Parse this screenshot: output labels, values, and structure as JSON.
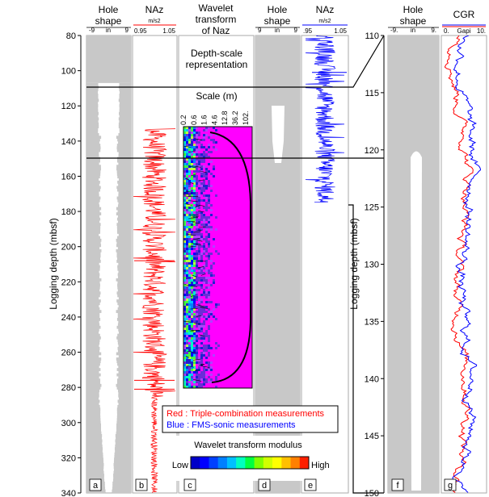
{
  "panels": {
    "hole_shape": {
      "title_line1": "Hole",
      "title_line2": "shape",
      "scale_left": "-9",
      "scale_unit": "in",
      "scale_right": "9"
    },
    "naz_b": {
      "title": "NAz",
      "unit": "m/s2",
      "scale_left": "0.95",
      "scale_right": "1.05"
    },
    "wavelet": {
      "title_line1": "Wavelet",
      "title_line2": "transform",
      "title_line3": "of Naz",
      "scale_title": "Scale (m)",
      "scale_ticks": [
        "0.2",
        "0.6",
        "1.6",
        "4.6",
        "12.8",
        "36.2",
        "102."
      ]
    },
    "hole_shape_d": {
      "title_line1": "Hole",
      "title_line2": "shape",
      "scale_left": "9",
      "scale_unit": "in",
      "scale_right": "9"
    },
    "naz_e": {
      "title": "NAz",
      "unit": "m/s2",
      "scale_left": ".95",
      "scale_right": "1.05"
    },
    "hole_shape_f": {
      "title_line1": "Hole",
      "title_line2": "shape",
      "scale_left": "-9.",
      "scale_unit": "in",
      "scale_right": "9."
    },
    "cgr": {
      "title": "CGR",
      "scale_left": "0.",
      "scale_unit": "Gapi",
      "scale_right": "10."
    }
  },
  "depth_scale_note": {
    "line1": "Depth-scale",
    "line2": "representation"
  },
  "legend": {
    "red": "Red : Triple-combination measurements",
    "blue": "Blue : FMS-sonic measurements",
    "colorbar_title": "Wavelet transform modulus",
    "low": "Low",
    "high": "High"
  },
  "panel_letters": [
    "a",
    "b",
    "c",
    "d",
    "e",
    "f",
    "g"
  ],
  "chart_data": [
    {
      "type": "line",
      "ylabel": "Logging depth (mbsf)",
      "ylim": [
        340,
        80
      ],
      "yticks": [
        80,
        100,
        120,
        140,
        160,
        180,
        200,
        220,
        240,
        260,
        280,
        300,
        320,
        340
      ],
      "series": [
        {
          "name": "Red : Triple-combination measurements",
          "color": "#ff0000",
          "depth_range": [
            133,
            340
          ],
          "naz_range": [
            0.95,
            1.05
          ]
        }
      ],
      "wavelet_depth_range": [
        133,
        282
      ],
      "colorbar": [
        "#0000c8",
        "#0000ff",
        "#0040ff",
        "#0080ff",
        "#00c0ff",
        "#00ffc0",
        "#00ff40",
        "#80ff00",
        "#d0ff00",
        "#ffff00",
        "#ffc000",
        "#ff8000",
        "#ff2000"
      ]
    },
    {
      "type": "line",
      "ylabel": "Logging depth (mbsf)",
      "ylim": [
        150,
        110
      ],
      "yticks": [
        110,
        115,
        120,
        125,
        130,
        135,
        140,
        145,
        150
      ],
      "series": [
        {
          "name": "Red : Triple-combination measurements",
          "color": "#ff0000"
        },
        {
          "name": "Blue : FMS-sonic measurements",
          "color": "#0000ff"
        }
      ]
    }
  ]
}
